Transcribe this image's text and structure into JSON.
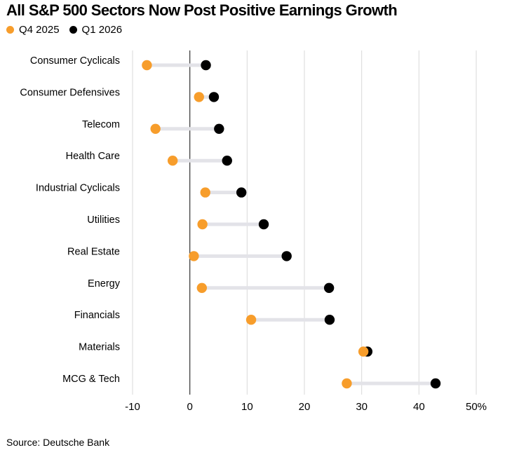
{
  "chart_data": {
    "type": "dumbbell",
    "title": "All S&P 500 Sectors Now Post Positive Earnings Growth",
    "series": [
      {
        "name": "Q4 2025",
        "color": "#f79d2b",
        "values": [
          -7.5,
          1.6,
          -6.0,
          -3.0,
          2.7,
          2.2,
          0.7,
          2.1,
          10.7,
          30.3,
          27.4
        ]
      },
      {
        "name": "Q1 2026",
        "color": "#000000",
        "values": [
          2.8,
          4.2,
          5.1,
          6.5,
          9.0,
          12.9,
          16.9,
          24.3,
          24.4,
          31.0,
          42.9
        ]
      }
    ],
    "categories": [
      "Consumer Cyclicals",
      "Consumer Defensives",
      "Telecom",
      "Health Care",
      "Industrial Cyclicals",
      "Utilities",
      "Real Estate",
      "Energy",
      "Financials",
      "Materials",
      "MCG & Tech"
    ],
    "xlim": [
      -10,
      50
    ],
    "xticks": [
      -10,
      0,
      10,
      20,
      30,
      40,
      50
    ],
    "xtick_labels": [
      "-10",
      "0",
      "10",
      "20",
      "30",
      "40",
      "50%"
    ],
    "grid": "vertical",
    "legend_position": "top-left"
  },
  "source": "Source: Deutsche Bank"
}
